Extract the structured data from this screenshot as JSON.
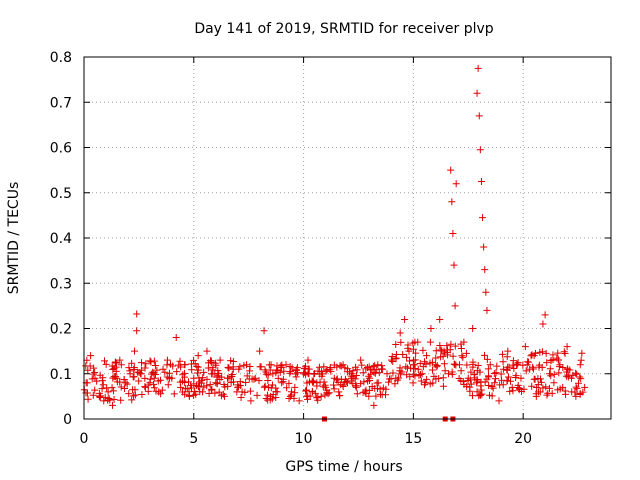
{
  "chart_data": {
    "type": "scatter",
    "title": "Day 141 of 2019, SRMTID for receiver plvp",
    "xlabel": "GPS time / hours",
    "ylabel": "SRMTID / TECUs",
    "xlim": [
      0,
      24
    ],
    "ylim": [
      0,
      0.8
    ],
    "x_ticks": [
      0,
      5,
      10,
      15,
      20
    ],
    "x_tick_labels": [
      "0",
      "5",
      "10",
      "15",
      "20"
    ],
    "y_ticks": [
      0,
      0.1,
      0.2,
      0.3,
      0.4,
      0.5,
      0.6,
      0.7,
      0.8
    ],
    "y_tick_labels": [
      "0",
      "0.1",
      "0.2",
      "0.3",
      "0.4",
      "0.5",
      "0.6",
      "0.7",
      "0.8"
    ],
    "grid": true,
    "marker": "+",
    "color": "#e00000",
    "series": [
      {
        "name": "SRMTID",
        "points": [
          [
            0.1,
            0.08
          ],
          [
            0.3,
            0.14
          ],
          [
            0.5,
            0.09
          ],
          [
            0.7,
            0.05
          ],
          [
            0.9,
            0.04
          ],
          [
            1.1,
            0.06
          ],
          [
            1.3,
            0.03
          ],
          [
            1.5,
            0.09
          ],
          [
            1.7,
            0.12
          ],
          [
            1.9,
            0.08
          ],
          [
            2.1,
            0.1
          ],
          [
            2.3,
            0.15
          ],
          [
            2.4,
            0.232
          ],
          [
            2.4,
            0.195
          ],
          [
            2.6,
            0.1
          ],
          [
            2.8,
            0.07
          ],
          [
            3.0,
            0.08
          ],
          [
            3.2,
            0.09
          ],
          [
            3.4,
            0.06
          ],
          [
            3.6,
            0.11
          ],
          [
            3.8,
            0.13
          ],
          [
            4.0,
            0.09
          ],
          [
            4.2,
            0.18
          ],
          [
            4.4,
            0.07
          ],
          [
            4.6,
            0.12
          ],
          [
            4.8,
            0.05
          ],
          [
            5.0,
            0.09
          ],
          [
            5.2,
            0.14
          ],
          [
            5.4,
            0.06
          ],
          [
            5.6,
            0.15
          ],
          [
            5.8,
            0.1
          ],
          [
            6.0,
            0.08
          ],
          [
            6.2,
            0.13
          ],
          [
            6.4,
            0.05
          ],
          [
            6.6,
            0.09
          ],
          [
            6.8,
            0.11
          ],
          [
            7.0,
            0.07
          ],
          [
            7.2,
            0.06
          ],
          [
            7.4,
            0.12
          ],
          [
            7.6,
            0.04
          ],
          [
            7.8,
            0.09
          ],
          [
            8.0,
            0.15
          ],
          [
            8.2,
            0.195
          ],
          [
            8.4,
            0.07
          ],
          [
            8.6,
            0.1
          ],
          [
            8.8,
            0.06
          ],
          [
            9.0,
            0.08
          ],
          [
            9.2,
            0.12
          ],
          [
            9.4,
            0.05
          ],
          [
            9.6,
            0.07
          ],
          [
            9.8,
            0.04
          ],
          [
            10.0,
            0.1
          ],
          [
            10.2,
            0.13
          ],
          [
            10.4,
            0.06
          ],
          [
            10.6,
            0.08
          ],
          [
            10.8,
            0.05
          ],
          [
            11.0,
            0.07
          ],
          [
            11.2,
            0.11
          ],
          [
            11.4,
            0.09
          ],
          [
            11.6,
            0.06
          ],
          [
            11.8,
            0.12
          ],
          [
            12.0,
            0.08
          ],
          [
            12.2,
            0.1
          ],
          [
            12.4,
            0.07
          ],
          [
            12.6,
            0.13
          ],
          [
            12.8,
            0.06
          ],
          [
            13.0,
            0.09
          ],
          [
            13.2,
            0.03
          ],
          [
            13.4,
            0.08
          ],
          [
            13.6,
            0.11
          ],
          [
            13.8,
            0.1
          ],
          [
            14.0,
            0.13
          ],
          [
            14.2,
            0.09
          ],
          [
            14.4,
            0.19
          ],
          [
            14.6,
            0.22
          ],
          [
            14.8,
            0.15
          ],
          [
            15.0,
            0.12
          ],
          [
            15.2,
            0.17
          ],
          [
            15.4,
            0.1
          ],
          [
            15.6,
            0.14
          ],
          [
            15.8,
            0.2
          ],
          [
            16.0,
            0.12
          ],
          [
            16.2,
            0.22
          ],
          [
            16.4,
            0.15
          ],
          [
            16.6,
            0.1
          ],
          [
            16.7,
            0.55
          ],
          [
            16.75,
            0.48
          ],
          [
            16.8,
            0.41
          ],
          [
            16.85,
            0.34
          ],
          [
            16.9,
            0.25
          ],
          [
            16.95,
            0.52
          ],
          [
            17.1,
            0.12
          ],
          [
            17.3,
            0.17
          ],
          [
            17.5,
            0.09
          ],
          [
            17.7,
            0.2
          ],
          [
            17.9,
            0.72
          ],
          [
            17.95,
            0.775
          ],
          [
            18.0,
            0.67
          ],
          [
            18.05,
            0.595
          ],
          [
            18.1,
            0.525
          ],
          [
            18.15,
            0.445
          ],
          [
            18.2,
            0.38
          ],
          [
            18.25,
            0.33
          ],
          [
            18.3,
            0.28
          ],
          [
            18.35,
            0.24
          ],
          [
            18.5,
            0.12
          ],
          [
            18.7,
            0.08
          ],
          [
            18.9,
            0.04
          ],
          [
            19.1,
            0.11
          ],
          [
            19.3,
            0.15
          ],
          [
            19.5,
            0.07
          ],
          [
            19.7,
            0.12
          ],
          [
            19.9,
            0.09
          ],
          [
            20.1,
            0.16
          ],
          [
            20.3,
            0.11
          ],
          [
            20.5,
            0.14
          ],
          [
            20.7,
            0.06
          ],
          [
            20.9,
            0.21
          ],
          [
            21.0,
            0.23
          ],
          [
            21.2,
            0.1
          ],
          [
            21.4,
            0.08
          ],
          [
            21.6,
            0.13
          ],
          [
            21.8,
            0.07
          ],
          [
            22.0,
            0.16
          ],
          [
            22.2,
            0.09
          ],
          [
            22.4,
            0.05
          ],
          [
            22.6,
            0.12
          ],
          [
            22.8,
            0.07
          ]
        ]
      }
    ],
    "dense_bands": [
      {
        "x_from": 0.0,
        "x_to": 2.5,
        "y_low": 0.04,
        "y_high": 0.13
      },
      {
        "x_from": 2.5,
        "x_to": 7.0,
        "y_low": 0.05,
        "y_high": 0.13
      },
      {
        "x_from": 7.0,
        "x_to": 11.0,
        "y_low": 0.04,
        "y_high": 0.12
      },
      {
        "x_from": 11.0,
        "x_to": 14.0,
        "y_low": 0.05,
        "y_high": 0.12
      },
      {
        "x_from": 14.0,
        "x_to": 17.5,
        "y_low": 0.07,
        "y_high": 0.17
      },
      {
        "x_from": 17.5,
        "x_to": 22.8,
        "y_low": 0.05,
        "y_high": 0.15
      }
    ],
    "gap_markers": [
      {
        "x": 10.95,
        "y": 0
      },
      {
        "x": 16.45,
        "y": 0
      },
      {
        "x": 16.8,
        "y": 0
      }
    ]
  }
}
